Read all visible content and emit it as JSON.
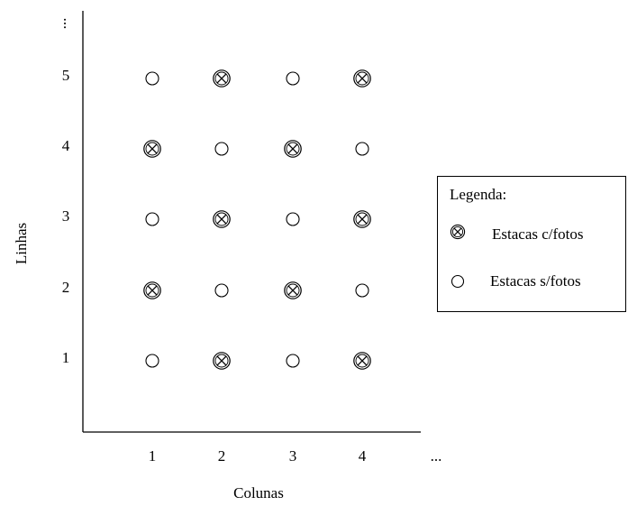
{
  "diagram": {
    "y_axis_label": "Linhas",
    "x_axis_label": "Colunas",
    "x_ticks": [
      "1",
      "2",
      "3",
      "4",
      "..."
    ],
    "y_ticks": [
      "1",
      "2",
      "3",
      "4",
      "5",
      "..."
    ],
    "legend": {
      "title": "Legenda:",
      "with_photo": "Estacas c/fotos",
      "without_photo": "Estacas s/fotos"
    },
    "grid": {
      "columns": [
        1,
        2,
        3,
        4
      ],
      "rows": [
        {
          "row": 1,
          "cells": [
            "s/fotos",
            "c/fotos",
            "s/fotos",
            "c/fotos"
          ]
        },
        {
          "row": 2,
          "cells": [
            "c/fotos",
            "s/fotos",
            "c/fotos",
            "s/fotos"
          ]
        },
        {
          "row": 3,
          "cells": [
            "s/fotos",
            "c/fotos",
            "s/fotos",
            "c/fotos"
          ]
        },
        {
          "row": 4,
          "cells": [
            "c/fotos",
            "s/fotos",
            "c/fotos",
            "s/fotos"
          ]
        },
        {
          "row": 5,
          "cells": [
            "s/fotos",
            "c/fotos",
            "s/fotos",
            "c/fotos"
          ]
        }
      ]
    }
  }
}
